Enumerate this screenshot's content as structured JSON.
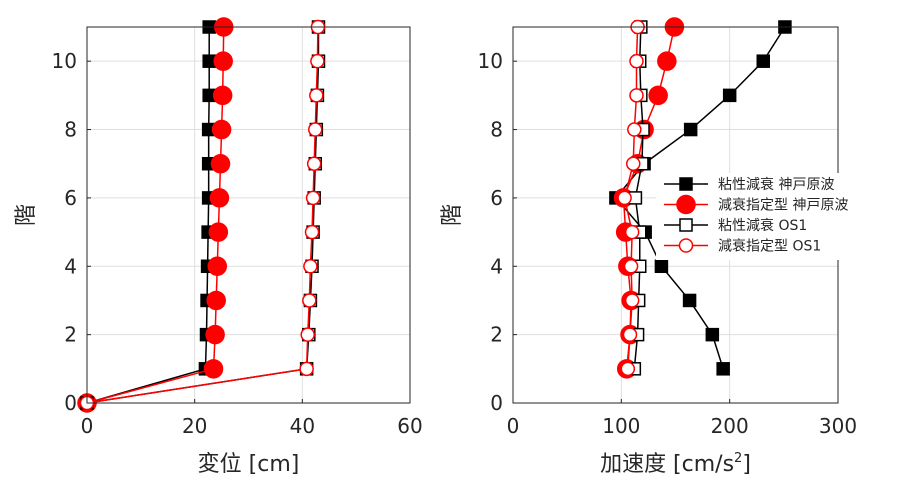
{
  "chart_data": [
    {
      "type": "line",
      "xlabel": "変位 [cm]",
      "ylabel": "階",
      "xlim": [
        0,
        60
      ],
      "ylim": [
        0,
        11
      ],
      "xticks": [
        "0",
        "20",
        "40",
        "60"
      ],
      "yticks": [
        "0",
        "2",
        "4",
        "6",
        "8",
        "10"
      ],
      "grid": true,
      "y": [
        0,
        1,
        2,
        3,
        4,
        5,
        6,
        7,
        8,
        9,
        10,
        11
      ],
      "series": [
        {
          "key": "visc_kobe",
          "color": "#000000",
          "marker": "square",
          "filled": true,
          "x": [
            0,
            22,
            22.2,
            22.3,
            22.4,
            22.5,
            22.6,
            22.6,
            22.6,
            22.7,
            22.7,
            22.7
          ]
        },
        {
          "key": "spec_kobe",
          "color": "#ff0000",
          "marker": "circle",
          "filled": true,
          "x": [
            0,
            23.5,
            23.8,
            24.0,
            24.2,
            24.4,
            24.6,
            24.8,
            25.0,
            25.2,
            25.3,
            25.4
          ]
        },
        {
          "key": "visc_os1",
          "color": "#000000",
          "marker": "square",
          "filled": false,
          "x": [
            0,
            40.8,
            41.2,
            41.5,
            41.8,
            42.0,
            42.2,
            42.4,
            42.6,
            42.8,
            43.0,
            43.0
          ]
        },
        {
          "key": "spec_os1",
          "color": "#ff0000",
          "marker": "circle",
          "filled": false,
          "x": [
            0,
            40.8,
            41.0,
            41.3,
            41.5,
            41.8,
            42.0,
            42.2,
            42.4,
            42.6,
            42.8,
            42.9
          ]
        }
      ]
    },
    {
      "type": "line",
      "xlabel_main": "加速度 [cm/s",
      "xlabel_sup": "2",
      "xlabel_close": "]",
      "ylabel": "階",
      "xlim": [
        0,
        300
      ],
      "ylim": [
        0,
        11
      ],
      "xticks": [
        "0",
        "100",
        "200",
        "300"
      ],
      "yticks": [
        "0",
        "2",
        "4",
        "6",
        "8",
        "10"
      ],
      "grid": true,
      "legend_position": "right",
      "y": [
        1,
        2,
        3,
        4,
        5,
        6,
        7,
        8,
        9,
        10,
        11
      ],
      "series": [
        {
          "name": "粘性減衰 神戸原波",
          "color": "#000000",
          "marker": "square",
          "filled": true,
          "x": [
            194,
            184,
            163,
            137,
            122,
            95,
            121,
            164,
            200,
            231,
            251
          ]
        },
        {
          "name": "減衰指定型 神戸原波",
          "color": "#ff0000",
          "marker": "circle",
          "filled": true,
          "x": [
            105,
            108,
            109,
            106,
            104,
            102,
            115,
            121,
            134,
            142,
            149
          ]
        },
        {
          "name": "粘性減衰 OS1",
          "color": "#000000",
          "marker": "square",
          "filled": false,
          "x": [
            112,
            115,
            116,
            117,
            117,
            113,
            119,
            120,
            118,
            117,
            118
          ]
        },
        {
          "name": "減衰指定型 OS1",
          "color": "#ff0000",
          "marker": "circle",
          "filled": false,
          "x": [
            106,
            108,
            110,
            109,
            110,
            103,
            111,
            112,
            114,
            114,
            115
          ]
        }
      ]
    }
  ]
}
